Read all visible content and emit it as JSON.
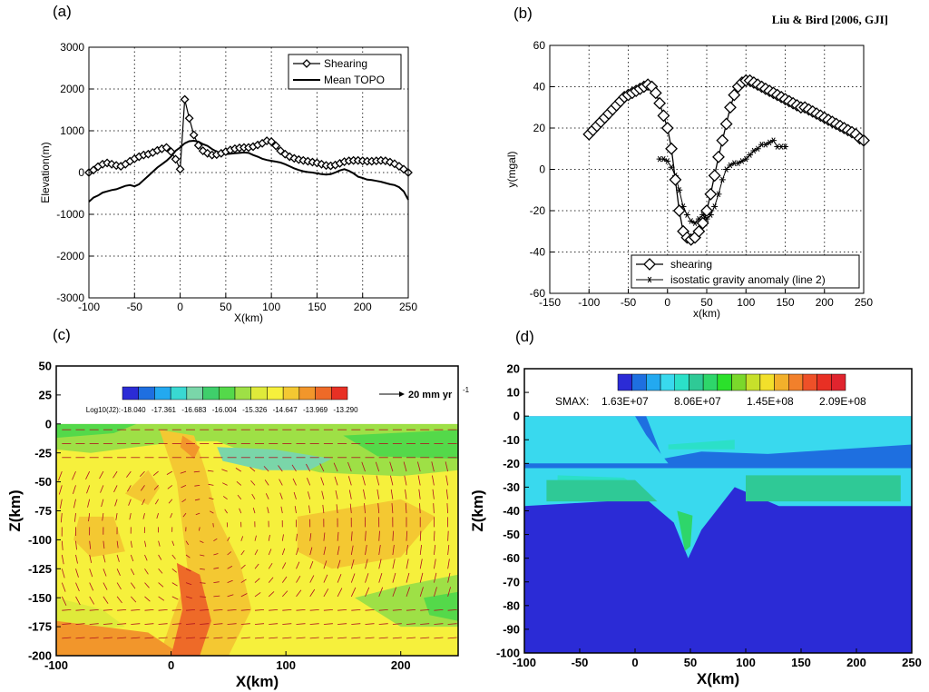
{
  "citation": "Liu & Bird [2006, GJI]",
  "chart_data": [
    {
      "panel": "(a)",
      "type": "line",
      "xlabel": "X(km)",
      "ylabel": "Elevation(m)",
      "xlim": [
        -100,
        250
      ],
      "ylim": [
        -3000,
        3000
      ],
      "xticks": [
        -100,
        -50,
        0,
        50,
        100,
        150,
        200,
        250
      ],
      "yticks": [
        -3000,
        -2000,
        -1000,
        0,
        1000,
        2000,
        3000
      ],
      "grid": true,
      "legend_position": "top-right",
      "series": [
        {
          "name": "Shearing",
          "marker": "diamond",
          "x": [
            -100,
            -95,
            -90,
            -85,
            -80,
            -75,
            -70,
            -65,
            -60,
            -55,
            -50,
            -45,
            -40,
            -35,
            -30,
            -25,
            -20,
            -15,
            -10,
            -5,
            0,
            5,
            10,
            15,
            20,
            25,
            30,
            35,
            40,
            45,
            50,
            55,
            60,
            65,
            70,
            75,
            80,
            85,
            90,
            95,
            100,
            105,
            110,
            115,
            120,
            125,
            130,
            135,
            140,
            145,
            150,
            155,
            160,
            165,
            170,
            175,
            180,
            185,
            190,
            195,
            200,
            205,
            210,
            215,
            220,
            225,
            230,
            235,
            240,
            245,
            250
          ],
          "y": [
            0,
            60,
            140,
            200,
            230,
            200,
            170,
            150,
            200,
            270,
            330,
            380,
            420,
            440,
            480,
            530,
            570,
            600,
            500,
            320,
            80,
            1750,
            1300,
            900,
            650,
            520,
            460,
            420,
            430,
            460,
            500,
            540,
            570,
            590,
            600,
            600,
            620,
            660,
            700,
            760,
            740,
            640,
            520,
            440,
            380,
            340,
            310,
            290,
            270,
            250,
            230,
            200,
            170,
            160,
            180,
            220,
            260,
            280,
            290,
            290,
            280,
            270,
            270,
            280,
            290,
            280,
            250,
            210,
            150,
            80,
            0
          ]
        },
        {
          "name": "Mean TOPO",
          "marker": "none",
          "x": [
            -100,
            -95,
            -90,
            -85,
            -80,
            -75,
            -70,
            -65,
            -60,
            -55,
            -50,
            -45,
            -40,
            -35,
            -30,
            -25,
            -20,
            -15,
            -10,
            -5,
            0,
            5,
            10,
            15,
            20,
            25,
            30,
            35,
            40,
            45,
            50,
            55,
            60,
            65,
            70,
            75,
            80,
            85,
            90,
            95,
            100,
            105,
            110,
            115,
            120,
            125,
            130,
            135,
            140,
            145,
            150,
            155,
            160,
            165,
            170,
            175,
            180,
            185,
            190,
            195,
            200,
            205,
            210,
            215,
            220,
            225,
            230,
            235,
            240,
            245,
            250
          ],
          "y": [
            -700,
            -600,
            -550,
            -480,
            -450,
            -420,
            -400,
            -360,
            -320,
            -300,
            -330,
            -280,
            -180,
            -80,
            20,
            120,
            200,
            280,
            380,
            520,
            600,
            700,
            750,
            760,
            740,
            680,
            640,
            560,
            500,
            460,
            440,
            450,
            460,
            470,
            480,
            470,
            420,
            380,
            330,
            300,
            280,
            260,
            240,
            200,
            150,
            100,
            60,
            30,
            10,
            0,
            -20,
            -40,
            -50,
            -40,
            0,
            50,
            80,
            40,
            -20,
            -100,
            -130,
            -170,
            -180,
            -200,
            -220,
            -250,
            -280,
            -300,
            -350,
            -450,
            -650
          ]
        }
      ]
    },
    {
      "panel": "(b)",
      "type": "line",
      "xlabel": "x(km)",
      "ylabel": "y(mgal)",
      "xlim": [
        -150,
        250
      ],
      "ylim": [
        -60,
        60
      ],
      "xticks": [
        -150,
        -100,
        -50,
        0,
        50,
        100,
        150,
        200,
        250
      ],
      "yticks": [
        -60,
        -40,
        -20,
        0,
        20,
        40,
        60
      ],
      "grid": true,
      "legend_position": "bottom-right",
      "series": [
        {
          "name": "shearing",
          "marker": "diamond",
          "x": [
            -100,
            -95,
            -90,
            -85,
            -80,
            -75,
            -70,
            -65,
            -60,
            -55,
            -50,
            -45,
            -40,
            -35,
            -30,
            -25,
            -20,
            -15,
            -10,
            -5,
            0,
            5,
            10,
            15,
            20,
            25,
            30,
            35,
            40,
            45,
            50,
            55,
            60,
            65,
            70,
            75,
            80,
            85,
            90,
            95,
            100,
            105,
            110,
            115,
            120,
            125,
            130,
            135,
            140,
            145,
            150,
            155,
            160,
            165,
            170,
            175,
            180,
            185,
            190,
            195,
            200,
            205,
            210,
            215,
            220,
            225,
            230,
            235,
            240,
            245,
            250
          ],
          "y": [
            17,
            19,
            21,
            23,
            25,
            27,
            29,
            31,
            33,
            35,
            36,
            37,
            38,
            39,
            40,
            41,
            40,
            37,
            32,
            26,
            20,
            10,
            -5,
            -20,
            -30,
            -33,
            -34,
            -33,
            -30,
            -26,
            -20,
            -12,
            -3,
            6,
            14,
            22,
            30,
            36,
            40,
            42,
            43,
            43,
            42,
            41,
            40,
            39,
            38,
            37,
            36,
            35,
            34,
            33,
            32,
            31,
            30,
            30,
            29,
            28,
            27,
            26,
            25,
            24,
            23,
            22,
            21,
            20,
            19,
            18,
            17,
            15,
            14
          ]
        },
        {
          "name": "isostatic gravity anomaly (line 2)",
          "marker": "asterisk",
          "x": [
            -10,
            -5,
            0,
            5,
            10,
            15,
            20,
            25,
            30,
            35,
            40,
            45,
            50,
            55,
            60,
            65,
            70,
            75,
            80,
            85,
            90,
            95,
            100,
            105,
            110,
            115,
            120,
            125,
            130,
            135,
            140,
            145,
            150
          ],
          "y": [
            5,
            5,
            4,
            1,
            -3,
            -10,
            -18,
            -22,
            -25,
            -26,
            -24,
            -22,
            -24,
            -22,
            -18,
            -12,
            -5,
            0,
            2,
            3,
            3,
            4,
            5,
            7,
            9,
            10,
            12,
            12,
            13,
            14,
            11,
            11,
            11
          ]
        }
      ]
    },
    {
      "panel": "(c)",
      "type": "heatmap",
      "xlabel": "X(km)",
      "ylabel": "Z(km)",
      "xlim": [
        -100,
        250
      ],
      "ylim": [
        -200,
        50
      ],
      "xticks": [
        -100,
        0,
        100,
        200
      ],
      "yticks": [
        -200,
        -175,
        -150,
        -125,
        -100,
        -75,
        -50,
        -25,
        0,
        25,
        50
      ],
      "colorbar_label": "Log10(J2):",
      "colorbar_ticks": [
        "-18.040",
        "-17.361",
        "-16.683",
        "-16.004",
        "-15.326",
        "-14.647",
        "-13.969",
        "-13.290"
      ],
      "colorbar_colors": [
        "#2b2bd6",
        "#1e6fe0",
        "#23a9f0",
        "#39d9d2",
        "#7ad6a9",
        "#3fcf6b",
        "#54d94a",
        "#9ee046",
        "#dfea3a",
        "#f6f03c",
        "#f4c832",
        "#f2962b",
        "#ee6a28",
        "#e83024"
      ],
      "vector_scale_label": "20 mm yr",
      "vector_scale_unit_exponent": "-1"
    },
    {
      "panel": "(d)",
      "type": "heatmap",
      "xlabel": "X(km)",
      "ylabel": "Z(km)",
      "xlim": [
        -100,
        250
      ],
      "ylim": [
        -100,
        20
      ],
      "xticks": [
        -100,
        -50,
        0,
        50,
        100,
        150,
        200,
        250
      ],
      "yticks": [
        -100,
        -90,
        -80,
        -70,
        -60,
        -50,
        -40,
        -30,
        -20,
        -10,
        0,
        10,
        20
      ],
      "colorbar_label": "SMAX:",
      "colorbar_ticks": [
        "1.63E+07",
        "8.06E+07",
        "1.45E+08",
        "2.09E+08"
      ],
      "colorbar_colors": [
        "#2b2bd6",
        "#1e6fe0",
        "#23a9f0",
        "#39d9ee",
        "#2be0c8",
        "#2fc996",
        "#2ed66a",
        "#2be02b",
        "#7ad82b",
        "#c7e02b",
        "#f2e02b",
        "#f2b02b",
        "#f2802b",
        "#ee5028",
        "#e83024",
        "#e0242e"
      ]
    }
  ]
}
